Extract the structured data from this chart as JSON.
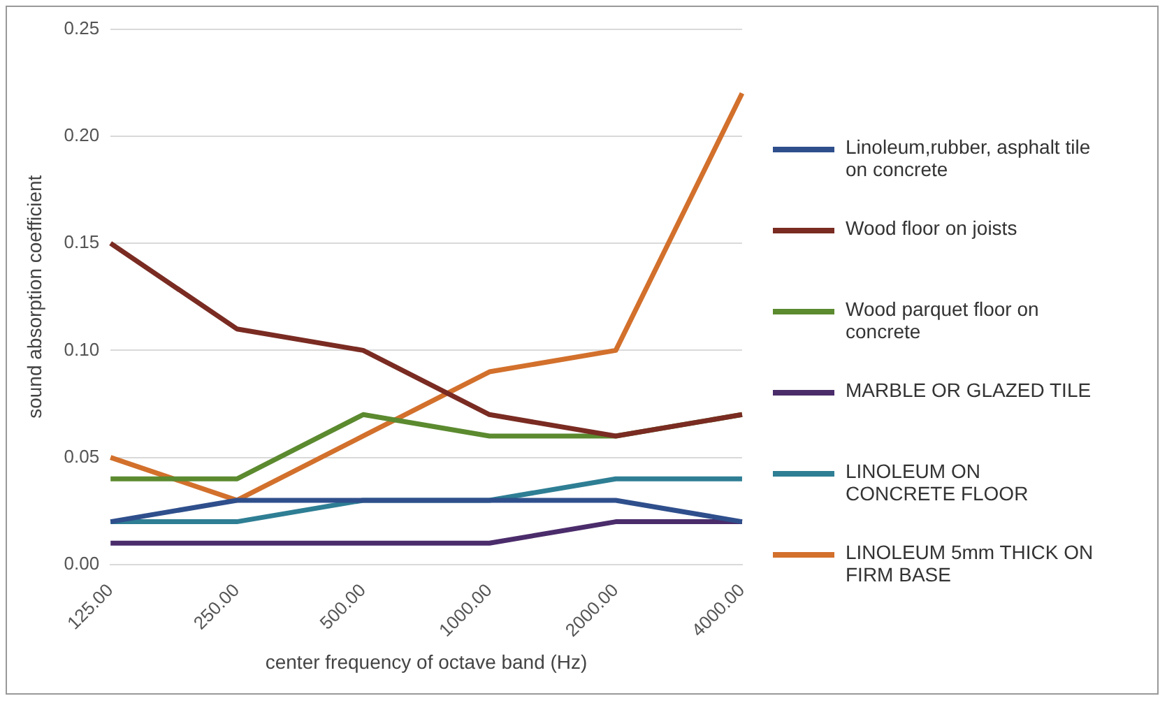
{
  "chart_data": {
    "type": "line",
    "xlabel": "center frequency of octave band (Hz)",
    "ylabel": "sound absorption coefficient",
    "categories": [
      "125.00",
      "250.00",
      "500.00",
      "1000.00",
      "2000.00",
      "4000.00"
    ],
    "series": [
      {
        "name": "Linoleum,rubber, asphalt tile on concrete",
        "color": "#2f4f8c",
        "values": [
          0.02,
          0.03,
          0.03,
          0.03,
          0.03,
          0.02
        ]
      },
      {
        "name": "Wood floor on joists",
        "color": "#7a2b22",
        "values": [
          0.15,
          0.11,
          0.1,
          0.07,
          0.06,
          0.07
        ]
      },
      {
        "name": "Wood parquet floor on concrete",
        "color": "#5b8a2f",
        "values": [
          0.04,
          0.04,
          0.07,
          0.06,
          0.06,
          0.07
        ]
      },
      {
        "name": "MARBLE OR GLAZED TILE",
        "color": "#4b2c6b",
        "values": [
          0.01,
          0.01,
          0.01,
          0.01,
          0.02,
          0.02
        ]
      },
      {
        "name": "LINOLEUM ON CONCRETE FLOOR",
        "color": "#2e7e94",
        "values": [
          0.02,
          0.02,
          0.03,
          0.03,
          0.04,
          0.04
        ]
      },
      {
        "name": "LINOLEUM 5mm THICK ON FIRM BASE",
        "color": "#d2702c",
        "values": [
          0.05,
          0.03,
          0.06,
          0.09,
          0.1,
          0.22
        ]
      }
    ],
    "ylim": [
      0,
      0.25
    ],
    "yticks": [
      {
        "value": 0,
        "label": "0.00"
      },
      {
        "value": 0.05,
        "label": "0.05"
      },
      {
        "value": 0.1,
        "label": "0.10"
      },
      {
        "value": 0.15,
        "label": "0.15"
      },
      {
        "value": 0.2,
        "label": "0.20"
      },
      {
        "value": 0.25,
        "label": "0.25"
      }
    ],
    "grid": "y",
    "legend": "right",
    "marker": "none",
    "line_style": "solid"
  }
}
